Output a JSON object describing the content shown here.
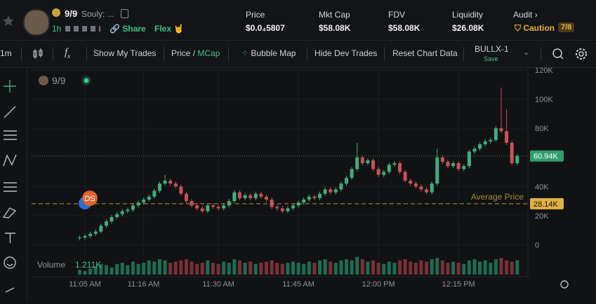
{
  "header": {
    "token": "9/9",
    "name": "Souly: ...",
    "age": "1h",
    "share": "Share",
    "flex": "Flex 🤘",
    "stats": [
      {
        "label": "Price",
        "value": "$0.0₄5807"
      },
      {
        "label": "Mkt Cap",
        "value": "$58.08K"
      },
      {
        "label": "FDV",
        "value": "$58.08K"
      },
      {
        "label": "Liquidity",
        "value": "$26.08K"
      }
    ],
    "audit": {
      "label": "Audit",
      "status": "Caution",
      "score": "7/8"
    }
  },
  "toolbar": {
    "interval": "1m",
    "show_trades": "Show My Trades",
    "price": "Price",
    "slash": "/",
    "mcap": "MCap",
    "bubble_map": "Bubble Map",
    "hide_dev": "Hide Dev Trades",
    "reset": "Reset Chart Data",
    "layout": "BULLX-1",
    "save": "Save"
  },
  "chart_data": {
    "type": "candlestick",
    "legend": "9/9",
    "marker": "DS",
    "volume_label": "Volume",
    "volume_value": "1.211K",
    "xlim": [
      -9,
      84
    ],
    "xticks": [
      {
        "value": 1,
        "label": "11:05 AM"
      },
      {
        "value": 12,
        "label": "11:16 AM"
      },
      {
        "value": 26,
        "label": "11:30 AM"
      },
      {
        "value": 41,
        "label": "11:45 AM"
      },
      {
        "value": 56,
        "label": "12:00 PM"
      },
      {
        "value": 71,
        "label": "12:15 PM"
      }
    ],
    "ylim": [
      -8000,
      120000
    ],
    "yticks": [
      {
        "value": 0,
        "label": "0"
      },
      {
        "value": 20000,
        "label": "20K"
      },
      {
        "value": 40000,
        "label": "40K"
      },
      {
        "value": 80000,
        "label": "80K"
      },
      {
        "value": 100000,
        "label": "100K"
      },
      {
        "value": 120000,
        "label": "120K"
      }
    ],
    "up_color": "#3fae7e",
    "down_color": "#c9505a",
    "open": [
      4500,
      5000,
      6000,
      7500,
      9000,
      13000,
      16000,
      19000,
      21000,
      23000,
      24000,
      27000,
      29000,
      31000,
      33000,
      37000,
      42000,
      44000,
      42000,
      40000,
      35000,
      30000,
      27000,
      25000,
      23000,
      27000,
      26000,
      25000,
      27000,
      30000,
      36000,
      32000,
      34000,
      32000,
      35000,
      33000,
      31000,
      26000,
      25000,
      23000,
      25000,
      27000,
      29000,
      31000,
      33000,
      32000,
      35000,
      38000,
      36000,
      38000,
      42000,
      46000,
      52000,
      60000,
      56000,
      58000,
      52000,
      48000,
      50000,
      55000,
      56000,
      50000,
      44000,
      42000,
      40000,
      38000,
      36000,
      42000,
      60000,
      57000,
      54000,
      56000,
      52000,
      54000,
      64000,
      66000,
      69000,
      71000,
      72000,
      80000,
      78000,
      70000,
      56000
    ],
    "high": [
      6500,
      7500,
      9000,
      10500,
      14500,
      17500,
      20500,
      22500,
      24500,
      25500,
      28500,
      30500,
      32500,
      34500,
      38500,
      43500,
      48000,
      45500,
      43500,
      41500,
      36500,
      31500,
      28500,
      26500,
      28500,
      28500,
      27500,
      28500,
      31500,
      37500,
      37500,
      35500,
      35500,
      36500,
      36500,
      34500,
      32500,
      27500,
      26500,
      26500,
      28500,
      30500,
      32500,
      34500,
      34500,
      36500,
      39500,
      39500,
      39500,
      43500,
      47500,
      53500,
      70000,
      61500,
      59500,
      59500,
      53500,
      51500,
      56500,
      57500,
      57500,
      51500,
      45500,
      43500,
      41500,
      39500,
      43500,
      66000,
      61500,
      58500,
      57500,
      57500,
      55500,
      65500,
      67500,
      70500,
      72500,
      73500,
      81500,
      108000,
      93000,
      71500,
      62500
    ],
    "low": [
      3000,
      3500,
      4500,
      6000,
      7500,
      11500,
      14500,
      17500,
      19500,
      21500,
      22500,
      25500,
      27500,
      29500,
      31500,
      35500,
      40500,
      40500,
      38500,
      33500,
      28500,
      25500,
      23500,
      21500,
      21500,
      24500,
      23500,
      23500,
      25500,
      28500,
      30500,
      30500,
      30500,
      30500,
      31500,
      29500,
      24500,
      23500,
      21500,
      21500,
      23500,
      25500,
      27500,
      29500,
      30500,
      30500,
      33500,
      34500,
      34500,
      36500,
      40500,
      44500,
      50500,
      54500,
      54500,
      50500,
      46500,
      46500,
      48500,
      53500,
      48500,
      42500,
      40500,
      38500,
      36500,
      34500,
      34500,
      40500,
      55500,
      52500,
      52500,
      50500,
      50500,
      52500,
      62500,
      64500,
      67500,
      69500,
      70500,
      76500,
      68500,
      54500,
      54500
    ],
    "close": [
      5000,
      6000,
      7500,
      9000,
      13000,
      16000,
      19000,
      21000,
      23000,
      24000,
      27000,
      29000,
      31000,
      33000,
      37000,
      42000,
      44000,
      42000,
      40000,
      35000,
      30000,
      27000,
      25000,
      23000,
      27000,
      26000,
      25000,
      27000,
      30000,
      36000,
      32000,
      34000,
      32000,
      35000,
      33000,
      31000,
      26000,
      25000,
      23000,
      25000,
      27000,
      29000,
      31000,
      33000,
      32000,
      35000,
      38000,
      36000,
      38000,
      42000,
      46000,
      52000,
      60000,
      56000,
      58000,
      52000,
      48000,
      50000,
      55000,
      56000,
      50000,
      44000,
      42000,
      40000,
      38000,
      36000,
      42000,
      60000,
      57000,
      54000,
      56000,
      52000,
      54000,
      64000,
      66000,
      69000,
      71000,
      72000,
      80000,
      78000,
      70000,
      56000,
      60940
    ],
    "volume": [
      400,
      300,
      500,
      700,
      900,
      800,
      600,
      900,
      1000,
      800,
      1100,
      900,
      1000,
      1200,
      1100,
      1300,
      1200,
      1000,
      1100,
      1200,
      1300,
      1100,
      900,
      1000,
      1200,
      1000,
      900,
      1100,
      1000,
      1300,
      1200,
      1000,
      1100,
      900,
      1000,
      1100,
      1200,
      1000,
      900,
      1000,
      1100,
      1000,
      900,
      1100,
      1000,
      1200,
      1300,
      1100,
      1000,
      1200,
      1300,
      1200,
      1500,
      1300,
      1100,
      1200,
      1000,
      900,
      1100,
      1000,
      1200,
      1300,
      1100,
      1000,
      1200,
      1100,
      1300,
      1400,
      1200,
      1000,
      1100,
      1000,
      900,
      1200,
      1300,
      1100,
      1200,
      1000,
      1300,
      1400,
      1200,
      1100,
      1211
    ],
    "volume_ylim": [
      0,
      1600
    ],
    "current_price": {
      "value": 60940,
      "label": "60.94K"
    },
    "average_price": {
      "name": "Average Price",
      "value": 28140,
      "label": "28.14K"
    }
  }
}
